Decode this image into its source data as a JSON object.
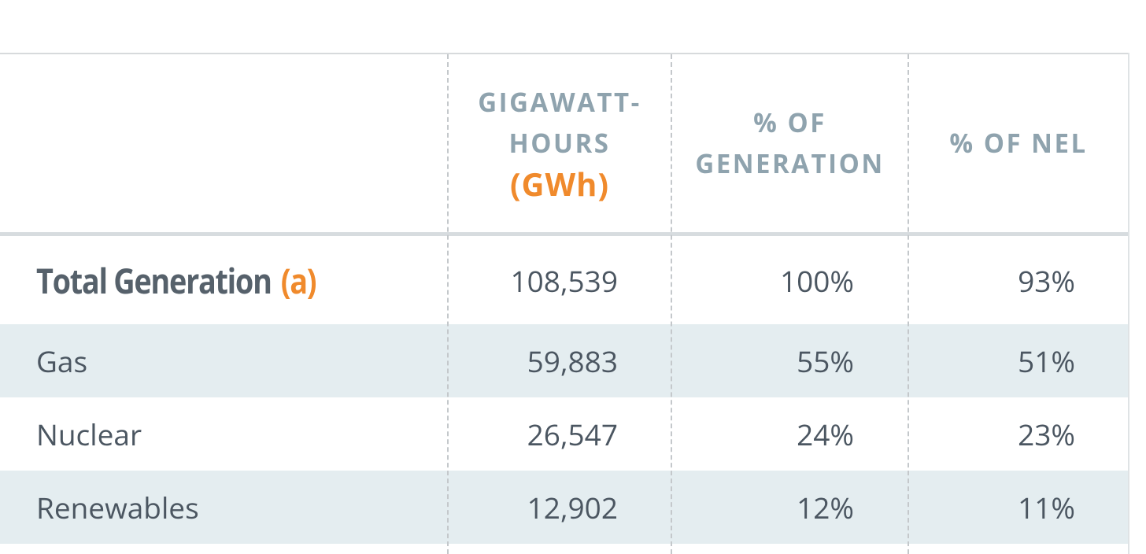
{
  "table": {
    "header": [
      "GIGAWATT-HOURS",
      "(GWh)",
      "% OF GENERATION",
      "% OF NEL"
    ],
    "rows": [
      [
        "Total Generation",
        "(a)",
        "108,539",
        "100%",
        "93%"
      ],
      [
        "Gas",
        "59,883",
        "55%",
        "51%"
      ],
      [
        "Nuclear",
        "26,547",
        "24%",
        "23%"
      ],
      [
        "Renewables",
        "12,902",
        "12%",
        "11%"
      ]
    ]
  }
}
